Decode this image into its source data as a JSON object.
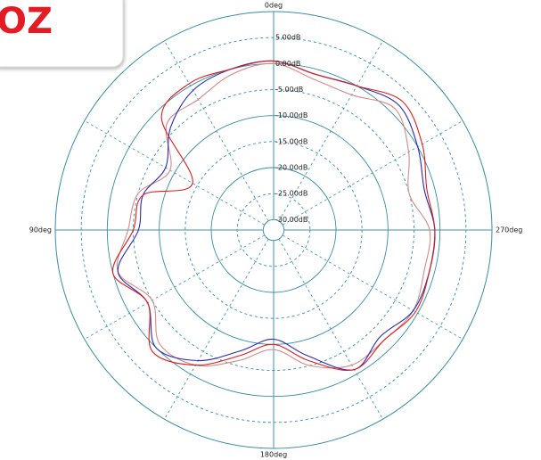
{
  "chart_data": {
    "type": "polar",
    "watermark": "OZ",
    "direction": "counterclockwise",
    "theta": [
      0,
      15,
      30,
      45,
      60,
      75,
      90,
      105,
      120,
      135,
      150,
      165,
      180,
      195,
      210,
      225,
      240,
      255,
      270,
      285,
      300,
      315,
      330,
      345
    ],
    "theta_ticks": [
      {
        "value": 0,
        "label": "0deg"
      },
      {
        "value": 90,
        "label": "90deg"
      },
      {
        "value": 180,
        "label": "180deg"
      },
      {
        "value": 270,
        "label": "270deg"
      }
    ],
    "rlim": [
      -32,
      10
    ],
    "rticks": [
      {
        "value": 5,
        "label": "5.00dB"
      },
      {
        "value": 0,
        "label": "0.00dB"
      },
      {
        "value": -5,
        "label": "-5.00dB"
      },
      {
        "value": -10,
        "label": "-10.00dB"
      },
      {
        "value": -15,
        "label": "-15.00dB"
      },
      {
        "value": -20,
        "label": "-20.00dB"
      },
      {
        "value": -25,
        "label": "-25.00dB"
      },
      {
        "value": -30,
        "label": "-30.00dB"
      }
    ],
    "grid_color": "#3a8ca0",
    "series": [
      {
        "color": "#d08a8a",
        "values": [
          0,
          -1,
          -3,
          -3,
          -9,
          -5,
          -4,
          -1,
          -5,
          -1,
          -2,
          -6,
          -9,
          -5,
          -2,
          -2,
          -1,
          -2,
          -2,
          -5,
          -2,
          1,
          -2,
          -2
        ]
      },
      {
        "color": "#2a2ab0",
        "values": [
          0.5,
          0,
          -1,
          -4,
          -8,
          -6,
          -6,
          -1,
          -4,
          0,
          -3,
          -8,
          -11,
          -7,
          -1,
          -3,
          -1,
          -1,
          -1,
          -2,
          0,
          2,
          0,
          -1
        ]
      },
      {
        "color": "#d42020",
        "values": [
          0.5,
          0,
          0.5,
          -1.5,
          -14,
          -6,
          -5,
          0,
          -4,
          1,
          -2,
          -7,
          -10,
          -6,
          -1,
          -2,
          -0.5,
          -1,
          -1,
          -1.5,
          1,
          3,
          0,
          -1
        ]
      }
    ]
  }
}
